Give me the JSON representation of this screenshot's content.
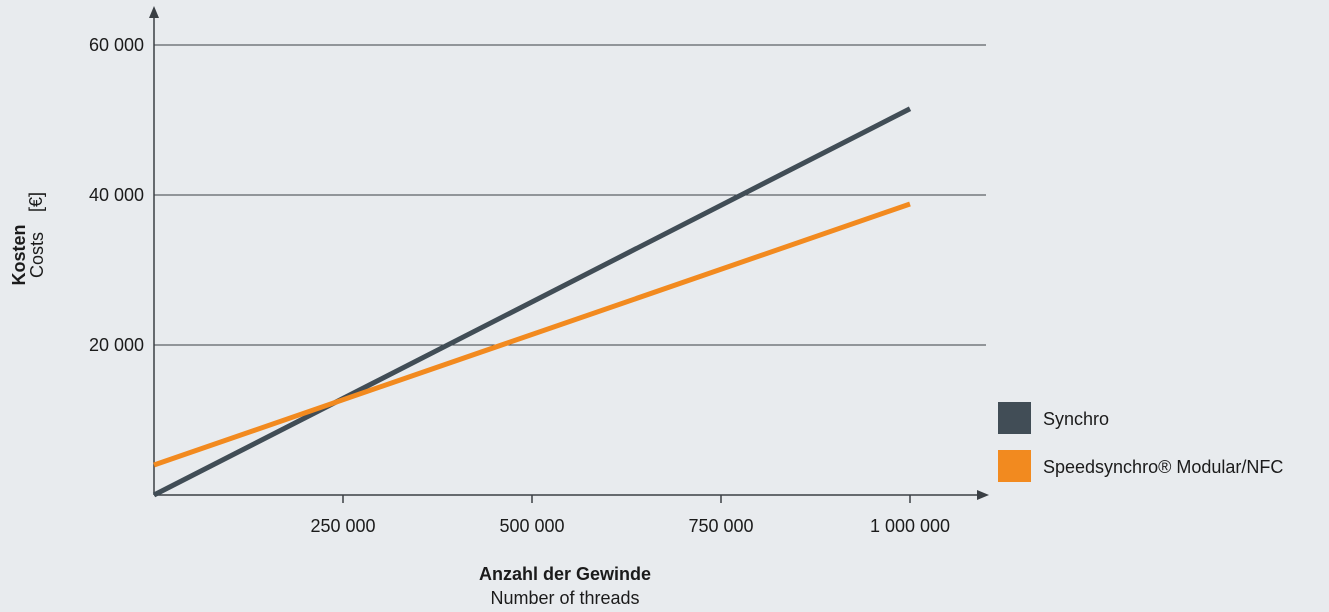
{
  "chart_data": {
    "type": "line",
    "x": [
      0,
      1000000
    ],
    "series": [
      {
        "name": "Synchro",
        "color": "#414d56",
        "values": [
          0,
          51500
        ]
      },
      {
        "name": "Speedsynchro® Modular/NFC",
        "color": "#f28a1f",
        "values": [
          4000,
          38800
        ]
      }
    ],
    "xlim": [
      0,
      1100000
    ],
    "ylim": [
      0,
      60000
    ],
    "x_ticks": [
      250000,
      500000,
      750000,
      1000000
    ],
    "x_tick_labels": [
      "250 000",
      "500 000",
      "750 000",
      "1 000 000"
    ],
    "y_ticks": [
      20000,
      40000,
      60000
    ],
    "y_tick_labels": [
      "20 000",
      "40 000",
      "60 000"
    ],
    "xlabel": "Anzahl der Gewinde",
    "xlabel_sub": "Number of threads",
    "ylabel": "Kosten",
    "ylabel_sub": "Costs",
    "ylabel_unit": "[€]",
    "grid": "horizontal",
    "legend_position": "right"
  }
}
